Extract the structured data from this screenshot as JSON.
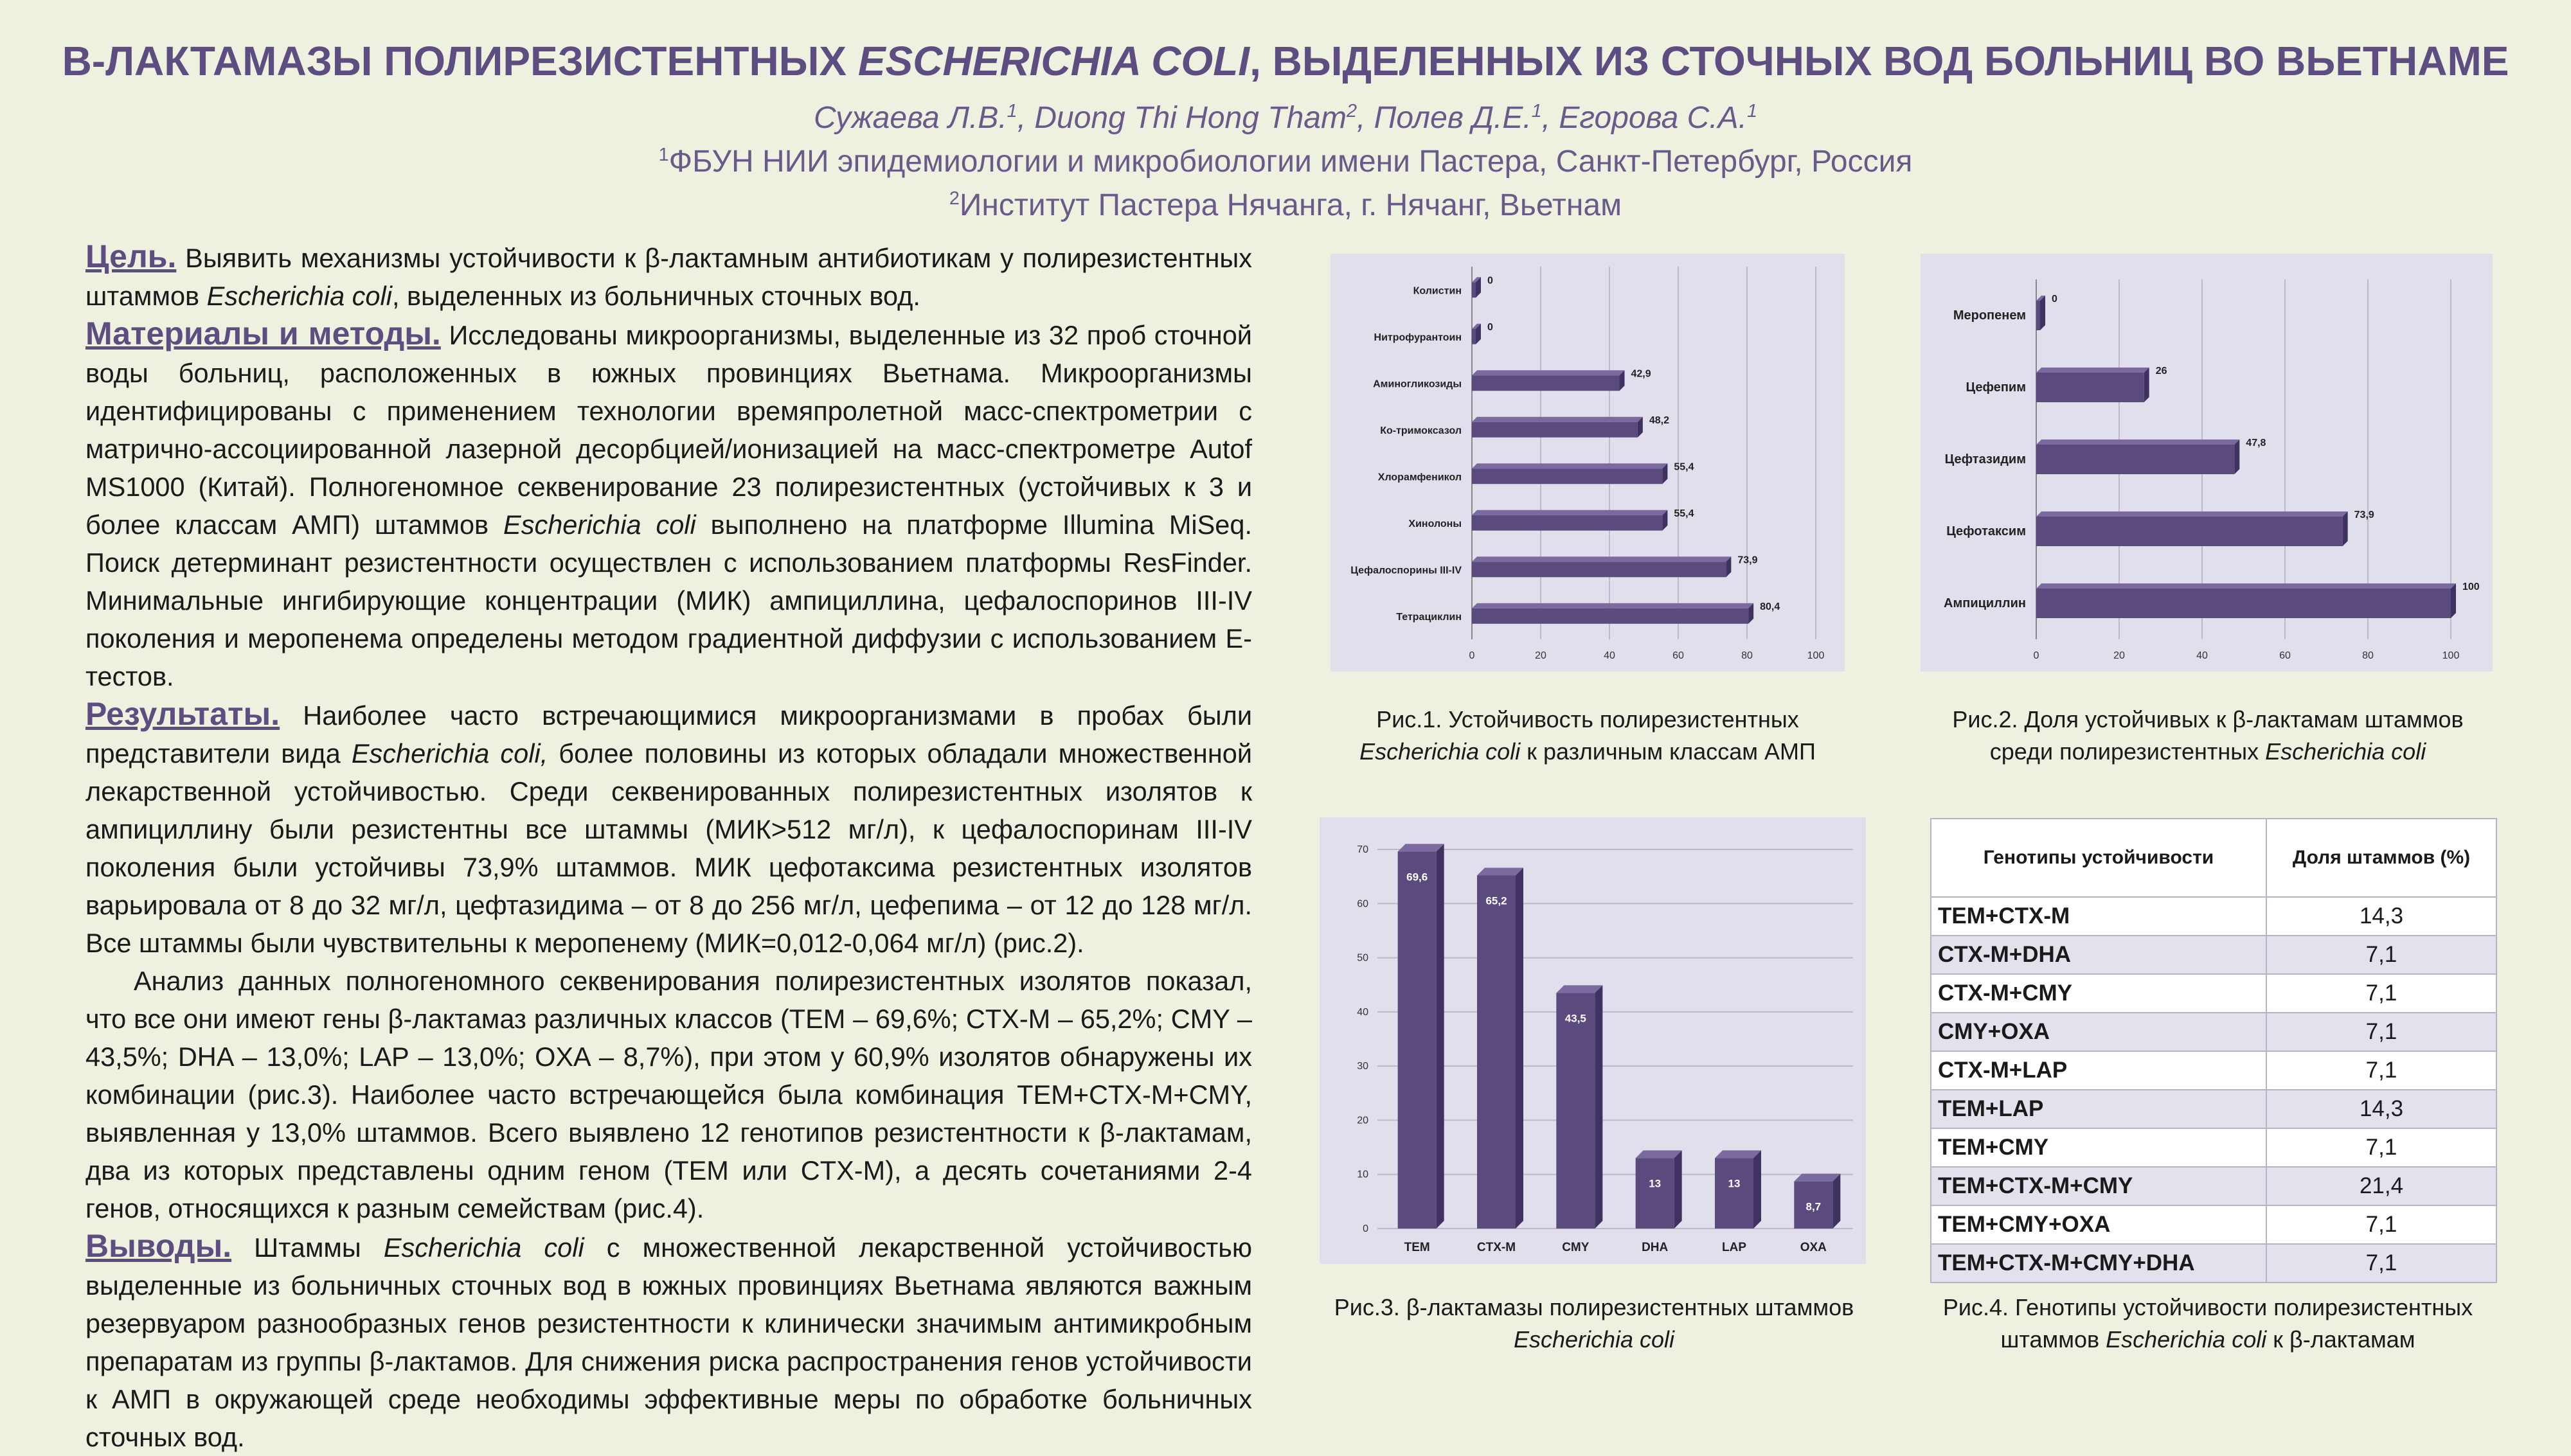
{
  "header": {
    "title_pre": "В-ЛАКТАМАЗЫ ПОЛИРЕЗИСТЕНТНЫХ ",
    "title_italic": "ESCHERICHIA COLI",
    "title_post": ", ВЫДЕЛЕННЫХ ИЗ СТОЧНЫХ ВОД БОЛЬНИЦ ВО ВЬЕТНАМЕ",
    "authors": [
      {
        "name": "Сужаева Л.В.",
        "sup": "1"
      },
      {
        "name": "Duong Thi Hong Tham",
        "sup": "2"
      },
      {
        "name": "Полев Д.Е.",
        "sup": "1"
      },
      {
        "name": "Егорова С.А.",
        "sup": "1"
      }
    ],
    "affiliations": [
      {
        "sup": "1",
        "text": "ФБУН НИИ эпидемиологии и микробиологии имени Пастера, Санкт-Петербург, Россия"
      },
      {
        "sup": "2",
        "text": "Институт Пастера Нячанга, г. Нячанг, Вьетнам"
      }
    ]
  },
  "sections": {
    "goal_head": "Цель.",
    "goal_1": " Выявить механизмы устойчивости к β-лактамным антибиотикам у полирезистентных штаммов ",
    "goal_it": "Escherichia coli",
    "goal_2": ", выделенных из больничных сточных вод.",
    "methods_head": "Материалы и методы.",
    "methods_1": " Исследованы микроорганизмы, выделенные из 32 проб сточной воды больниц, расположенных в южных провинциях Вьетнама. Микроорганизмы идентифицированы с применением технологии времяпролетной масс-спектрометрии с матрично-ассоциированной лазерной десорбцией/ионизацией на масс-спектрометре Autof MS1000 (Китай). Полногеномное секвенирование 23 полирезистентных (устойчивых к 3 и более классам АМП) штаммов ",
    "methods_it": "Escherichia coli",
    "methods_2": " выполнено на платформе Illumina MiSeq. Поиск детерминант резистентности осуществлен с использованием платформы ResFinder. Минимальные ингибирующие концентрации (МИК) ампициллина, цефалоспоринов III-IV поколения и меропенема определены методом градиентной диффузии с использованием Е-тестов.",
    "results_head": "Результаты.",
    "results_1": " Наиболее часто встречающимися микроорганизмами в пробах были представители вида ",
    "results_it": "Escherichia coli,",
    "results_2": " более половины из которых обладали множественной лекарственной устойчивостью. Среди секвенированных полирезистентных изолятов к ампициллину были резистентны все штаммы (МИК>512 мг/л), к цефалоспоринам III-IV поколения были устойчивы 73,9% штаммов. МИК цефотаксима резистентных изолятов варьировала от 8 до 32 мг/л, цефтазидима – от 8 до 256 мг/л, цефепима – от 12 до 128 мг/л. Все штаммы были чувствительны к меропенему (МИК=0,012-0,064 мг/л) (рис.2).",
    "results_3": "Анализ данных полногеномного секвенирования полирезистентных изолятов показал, что все они имеют гены β-лактамаз различных классов (TEM – 69,6%; CTX-M – 65,2%; CMY – 43,5%; DHA – 13,0%; LAP – 13,0%; OXA – 8,7%), при этом у 60,9% изолятов обнаружены их комбинации (рис.3). Наиболее часто встречающейся была комбинация TEM+CTX-M+CMY, выявленная у 13,0% штаммов. Всего выявлено 12 генотипов резистентности к β-лактамам, два из которых представлены одним геном (TEM или CTX-M), а десять сочетаниями 2-4 генов, относящихся к разным семействам (рис.4).",
    "concl_head": "Выводы.",
    "concl_1": " Штаммы ",
    "concl_it": "Escherichia coli",
    "concl_2": " с множественной лекарственной устойчивостью выделенные из больничных сточных вод в южных провинциях Вьетнама являются важным резервуаром разнообразных генов резистентности к клинически значимым антимикробным препаратам из группы β-лактамов. Для снижения риска распространения генов устойчивости к АМП в окружающей среде необходимы эффективные меры по обработке больничных сточных вод."
  },
  "captions": {
    "fig1_a": "Рис.1. Устойчивость полирезистентных",
    "fig1_it": "Escherichia coli",
    "fig1_b": " к различным классам АМП",
    "fig2_a": "Рис.2. Доля устойчивых к β-лактамам штаммов",
    "fig2_b": "среди полирезистентных ",
    "fig2_it": "Escherichia coli",
    "fig3_a": "Рис.3. β-лактамазы полирезистентных штаммов",
    "fig3_it": "Escherichia coli",
    "fig4_a": "Рис.4. Генотипы устойчивости полирезистентных",
    "fig4_b": "штаммов ",
    "fig4_it": "Escherichia coli",
    "fig4_c": " к β-лактамам"
  },
  "chart_data": [
    {
      "type": "bar",
      "orientation": "horizontal",
      "categories": [
        "Колистин",
        "Нитрофурантоин",
        "Аминогликозиды",
        "Ко-тримоксазол",
        "Хлорамфеникол",
        "Хинолоны",
        "Цефалоспорины III-IV",
        "Тетрациклин"
      ],
      "values": [
        0,
        0,
        42.9,
        48.2,
        55.4,
        55.4,
        73.9,
        80.4
      ],
      "labels": [
        "0",
        "0",
        "42,9",
        "48,2",
        "55,4",
        "55,4",
        "73,9",
        "80,4"
      ],
      "xlim": [
        0,
        100
      ],
      "ticks": [
        "0",
        "20",
        "40",
        "60",
        "80",
        "100"
      ],
      "grid": true
    },
    {
      "type": "bar",
      "orientation": "horizontal",
      "categories": [
        "Меропенем",
        "Цефепим",
        "Цефтазидим",
        "Цефотаксим",
        "Ампициллин"
      ],
      "values": [
        0,
        26,
        47.8,
        73.9,
        100
      ],
      "labels": [
        "0",
        "26",
        "47,8",
        "73,9",
        "100"
      ],
      "xlim": [
        0,
        100
      ],
      "ticks": [
        "0",
        "20",
        "40",
        "60",
        "80",
        "100"
      ],
      "grid": true
    },
    {
      "type": "bar",
      "orientation": "vertical",
      "categories": [
        "TEM",
        "CTX-M",
        "CMY",
        "DHA",
        "LAP",
        "OXA"
      ],
      "values": [
        69.6,
        65.2,
        43.5,
        13,
        13,
        8.7
      ],
      "labels": [
        "69,6",
        "65,2",
        "43,5",
        "13",
        "13",
        "8,7"
      ],
      "ylim": [
        0,
        70
      ],
      "ticks": [
        "0",
        "10",
        "20",
        "30",
        "40",
        "50",
        "60",
        "70"
      ],
      "grid": true
    },
    {
      "type": "table",
      "headers": [
        "Генотипы устойчивости",
        "Доля штаммов (%)"
      ],
      "rows": [
        [
          "TEM+CTX-M",
          "14,3"
        ],
        [
          "CTX-M+DHA",
          "7,1"
        ],
        [
          "CTX-M+CMY",
          "7,1"
        ],
        [
          "CMY+OXA",
          "7,1"
        ],
        [
          "CTX-M+LAP",
          "7,1"
        ],
        [
          "TEM+LAP",
          "14,3"
        ],
        [
          "TEM+CMY",
          "7,1"
        ],
        [
          "TEM+CTX-M+CMY",
          "21,4"
        ],
        [
          "TEM+CMY+OXA",
          "7,1"
        ],
        [
          "TEM+CTX-M+CMY+DHA",
          "7,1"
        ]
      ]
    }
  ],
  "colors": {
    "title": "#5e4d80",
    "bar": "#5b4a7e",
    "bar_top": "#7a6aa0",
    "bar_side": "#3f3260",
    "chart_bg": "#e2dfec"
  }
}
